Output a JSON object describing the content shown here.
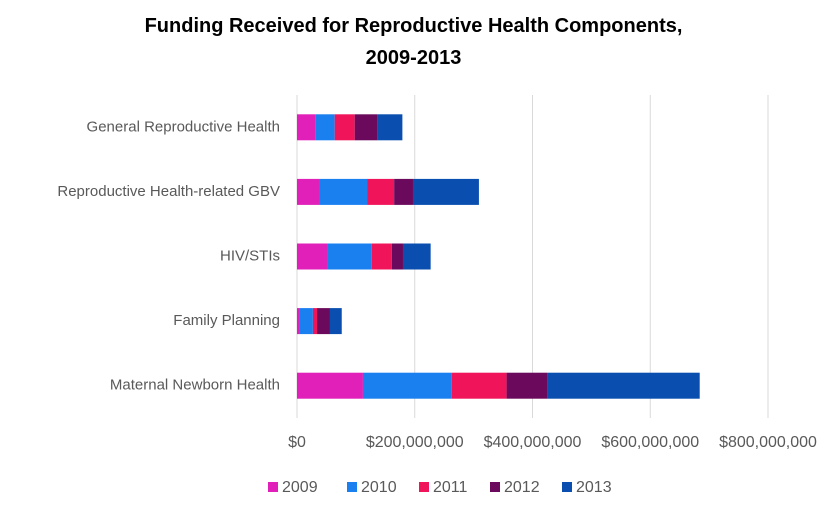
{
  "chart_data": {
    "type": "stacked_barh",
    "title": "Funding Received for Reproductive Health Components,\n2009-2013",
    "categories": [
      "General Reproductive Health",
      "Reproductive Health-related GBV",
      "HIV/STIs",
      "Family Planning",
      "Maternal Newborn Health"
    ],
    "series": [
      {
        "name": "2009",
        "color": "#e020b8",
        "values": [
          32000000,
          39000000,
          51000000,
          5000000,
          112000000
        ]
      },
      {
        "name": "2010",
        "color": "#1a80f0",
        "values": [
          32000000,
          80000000,
          76000000,
          22000000,
          151000000
        ]
      },
      {
        "name": "2011",
        "color": "#f0145a",
        "values": [
          34000000,
          46000000,
          34000000,
          7000000,
          93000000
        ]
      },
      {
        "name": "2012",
        "color": "#6b0a5c",
        "values": [
          39000000,
          32000000,
          19000000,
          22000000,
          70000000
        ]
      },
      {
        "name": "2013",
        "color": "#0a4fb0",
        "values": [
          42000000,
          112000000,
          47000000,
          20000000,
          258000000
        ]
      }
    ],
    "xlim": [
      0,
      800000000
    ],
    "xticks": [
      {
        "value": 0,
        "label": "$0"
      },
      {
        "value": 200000000,
        "label": "$200,000,000"
      },
      {
        "value": 400000000,
        "label": "$400,000,000"
      },
      {
        "value": 600000000,
        "label": "$600,000,000"
      },
      {
        "value": 800000000,
        "label": "$800,000,000"
      }
    ],
    "grid": true,
    "legend": "bottom"
  }
}
